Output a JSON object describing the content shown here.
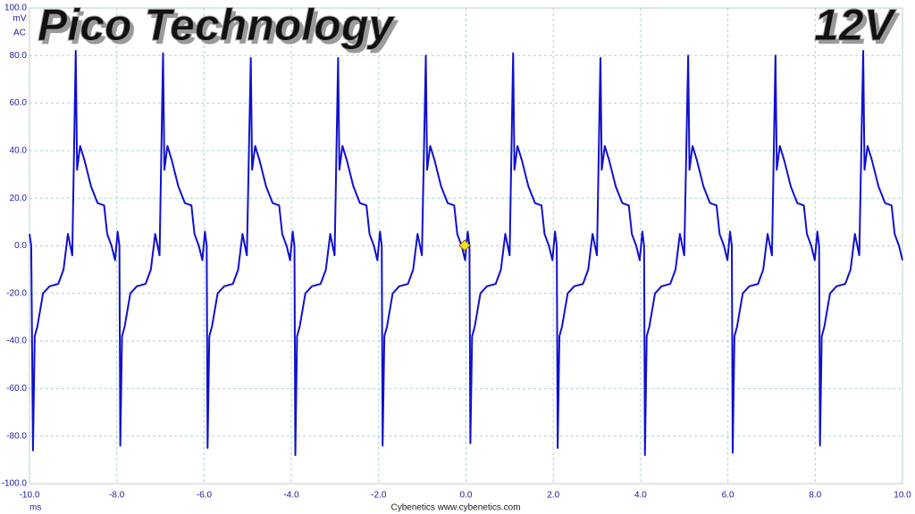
{
  "chart_data": {
    "type": "line",
    "title": "Pico Technology",
    "badge": "12V",
    "y_unit": "mV",
    "y_coupling": "AC",
    "x_unit": "ms",
    "footer": "Cybenetics   www.cybenetics.com",
    "color": "#1010d0",
    "grid": true,
    "xlim": [
      -10,
      10
    ],
    "ylim": [
      -100,
      100
    ],
    "xticks": [
      {
        "value": -10,
        "label": "-10.0"
      },
      {
        "value": -8,
        "label": "-8.0"
      },
      {
        "value": -6,
        "label": "-6.0"
      },
      {
        "value": -4,
        "label": "-4.0"
      },
      {
        "value": -2,
        "label": "-2.0"
      },
      {
        "value": 0,
        "label": "0.0"
      },
      {
        "value": 2,
        "label": "2.0"
      },
      {
        "value": 4,
        "label": "4.0"
      },
      {
        "value": 6,
        "label": "6.0"
      },
      {
        "value": 8,
        "label": "8.0"
      },
      {
        "value": 10,
        "label": "10.0"
      }
    ],
    "yticks": [
      {
        "value": 100,
        "label": "100.0"
      },
      {
        "value": 80,
        "label": "80.0"
      },
      {
        "value": 60,
        "label": "60.0"
      },
      {
        "value": 40,
        "label": "40.0"
      },
      {
        "value": 20,
        "label": "20.0"
      },
      {
        "value": 0,
        "label": "0.0"
      },
      {
        "value": -20,
        "label": "-20.0"
      },
      {
        "value": -40,
        "label": "-40.0"
      },
      {
        "value": -60,
        "label": "-60.0"
      },
      {
        "value": -80,
        "label": "-80.0"
      },
      {
        "value": -100,
        "label": "-100.0"
      }
    ],
    "x": [
      -10,
      -9.96,
      -9.92,
      -9.88,
      -9.82,
      -9.69,
      -9.54,
      -9.34,
      -9.22,
      -9.12,
      -9.02,
      -8.94,
      -8.91,
      -8.84,
      -8.74,
      -8.59,
      -8.44,
      -8.29,
      -8.22,
      -8.12,
      -8.04,
      -7.98,
      -7.94,
      -7.92,
      -7.88,
      -7.82,
      -7.69,
      -7.54,
      -7.34,
      -7.22,
      -7.12,
      -7.02,
      -6.94,
      -6.91,
      -6.84,
      -6.74,
      -6.59,
      -6.44,
      -6.29,
      -6.22,
      -6.12,
      -6.04,
      -5.98,
      -5.94,
      -5.92,
      -5.88,
      -5.82,
      -5.69,
      -5.54,
      -5.34,
      -5.22,
      -5.12,
      -5.02,
      -4.93,
      -4.9,
      -4.83,
      -4.73,
      -4.58,
      -4.43,
      -4.28,
      -4.21,
      -4.11,
      -4.03,
      -3.97,
      -3.93,
      -3.91,
      -3.87,
      -3.81,
      -3.68,
      -3.53,
      -3.33,
      -3.21,
      -3.11,
      -3.01,
      -2.93,
      -2.9,
      -2.83,
      -2.73,
      -2.58,
      -2.43,
      -2.28,
      -2.21,
      -2.11,
      -2.03,
      -1.97,
      -1.93,
      -1.91,
      -1.87,
      -1.81,
      -1.68,
      -1.53,
      -1.33,
      -1.21,
      -1.11,
      -1.01,
      -0.92,
      -0.89,
      -0.82,
      -0.72,
      -0.57,
      -0.42,
      -0.27,
      -0.2,
      -0.1,
      -0.02,
      0.04,
      0.08,
      0.1,
      0.14,
      0.2,
      0.33,
      0.48,
      0.68,
      0.8,
      0.9,
      1.0,
      1.08,
      1.11,
      1.18,
      1.28,
      1.43,
      1.58,
      1.73,
      1.8,
      1.9,
      1.98,
      2.04,
      2.08,
      2.1,
      2.14,
      2.2,
      2.33,
      2.48,
      2.68,
      2.8,
      2.9,
      3.0,
      3.08,
      3.11,
      3.18,
      3.28,
      3.43,
      3.58,
      3.73,
      3.8,
      3.9,
      3.98,
      4.04,
      4.08,
      4.1,
      4.14,
      4.2,
      4.33,
      4.48,
      4.68,
      4.8,
      4.9,
      5.0,
      5.09,
      5.12,
      5.19,
      5.29,
      5.44,
      5.59,
      5.74,
      5.81,
      5.91,
      5.99,
      6.05,
      6.09,
      6.11,
      6.15,
      6.21,
      6.34,
      6.49,
      6.69,
      6.81,
      6.91,
      7.01,
      7.09,
      7.12,
      7.19,
      7.29,
      7.44,
      7.59,
      7.74,
      7.81,
      7.91,
      7.99,
      8.05,
      8.09,
      8.11,
      8.15,
      8.21,
      8.34,
      8.49,
      8.69,
      8.81,
      8.91,
      9.01,
      9.1,
      9.13,
      9.2,
      9.3,
      9.45,
      9.6,
      9.75,
      9.82,
      9.92,
      10.0
    ],
    "values": [
      5,
      0,
      -86,
      -38,
      -34,
      -20,
      -17,
      -16,
      -10,
      5,
      -4,
      82,
      32,
      42,
      36,
      25,
      18,
      17,
      5,
      0,
      -6,
      6,
      0,
      -84,
      -38,
      -34,
      -20,
      -17,
      -16,
      -10,
      5,
      -4,
      81,
      32,
      42,
      36,
      25,
      18,
      17,
      5,
      0,
      -6,
      6,
      0,
      -85,
      -38,
      -34,
      -20,
      -17,
      -16,
      -10,
      5,
      -4,
      79,
      32,
      42,
      36,
      25,
      18,
      17,
      5,
      0,
      -6,
      6,
      0,
      -88,
      -38,
      -34,
      -20,
      -17,
      -16,
      -10,
      5,
      -4,
      79,
      32,
      42,
      36,
      25,
      18,
      17,
      5,
      0,
      -6,
      6,
      0,
      -84,
      -38,
      -34,
      -20,
      -17,
      -16,
      -10,
      5,
      -4,
      80,
      32,
      42,
      36,
      25,
      18,
      17,
      5,
      0,
      -6,
      6,
      0,
      -83,
      -38,
      -34,
      -20,
      -17,
      -16,
      -10,
      5,
      -4,
      81,
      32,
      42,
      36,
      25,
      18,
      17,
      5,
      0,
      -6,
      6,
      0,
      -85,
      -38,
      -34,
      -20,
      -17,
      -16,
      -10,
      5,
      -4,
      79,
      32,
      42,
      36,
      25,
      18,
      17,
      5,
      0,
      -6,
      6,
      0,
      -88,
      -38,
      -34,
      -20,
      -17,
      -16,
      -10,
      5,
      -4,
      80,
      32,
      42,
      36,
      25,
      18,
      17,
      5,
      0,
      -6,
      6,
      0,
      -87,
      -38,
      -34,
      -20,
      -17,
      -16,
      -10,
      5,
      -4,
      80,
      32,
      42,
      36,
      25,
      18,
      17,
      5,
      0,
      -6,
      6,
      0,
      -84,
      -38,
      -34,
      -20,
      -17,
      -16,
      -10,
      5,
      -4,
      82,
      32,
      42,
      36,
      25,
      18,
      17,
      5,
      0,
      -6
    ]
  }
}
